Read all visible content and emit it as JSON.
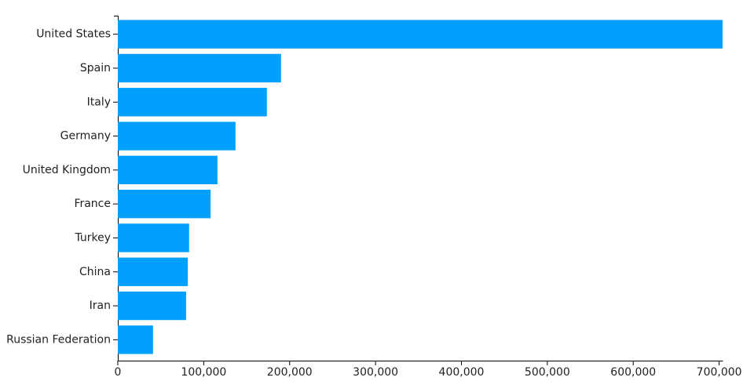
{
  "chart_data": {
    "type": "bar",
    "orientation": "horizontal",
    "color": "#039ffc",
    "categories": [
      "United States",
      "Spain",
      "Italy",
      "Germany",
      "United Kingdom",
      "France",
      "Turkey",
      "China",
      "Iran",
      "Russian Federation"
    ],
    "values": [
      704000,
      190000,
      173500,
      137000,
      116000,
      108000,
      83000,
      81500,
      79500,
      41000
    ],
    "xlim": [
      0,
      704000
    ],
    "xticks": [
      0,
      {
        "value": 100000,
        "label": "100,000"
      },
      {
        "value": 200000,
        "label": "200,000"
      },
      {
        "value": 300000,
        "label": "300,000"
      },
      {
        "value": 400000,
        "label": "400,000"
      },
      {
        "value": 500000,
        "label": "500,000"
      },
      {
        "value": 600000,
        "label": "600,000"
      },
      {
        "value": 700000,
        "label": "700,000"
      }
    ]
  }
}
